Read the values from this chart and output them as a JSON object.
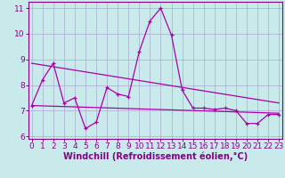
{
  "bg_color": "#c8eaea",
  "grid_color": "#aaaacc",
  "line_color": "#aa00aa",
  "x_hours": [
    0,
    1,
    2,
    3,
    4,
    5,
    6,
    7,
    8,
    9,
    10,
    11,
    12,
    13,
    14,
    15,
    16,
    17,
    18,
    19,
    20,
    21,
    22,
    23
  ],
  "series1": [
    7.2,
    8.2,
    8.85,
    7.3,
    7.5,
    6.3,
    6.55,
    7.9,
    7.65,
    7.55,
    9.3,
    10.5,
    11.0,
    9.95,
    7.8,
    7.1,
    7.1,
    7.05,
    7.1,
    7.0,
    6.5,
    6.5,
    6.85,
    6.85
  ],
  "series2_x": [
    0,
    23
  ],
  "series2_y": [
    8.85,
    7.3
  ],
  "series3_x": [
    0,
    23
  ],
  "series3_y": [
    7.2,
    6.9
  ],
  "ylim": [
    5.9,
    11.25
  ],
  "xlim": [
    -0.3,
    23.3
  ],
  "yticks": [
    6,
    7,
    8,
    9,
    10,
    11
  ],
  "xticks": [
    0,
    1,
    2,
    3,
    4,
    5,
    6,
    7,
    8,
    9,
    10,
    11,
    12,
    13,
    14,
    15,
    16,
    17,
    18,
    19,
    20,
    21,
    22,
    23
  ],
  "xlabel": "Windchill (Refroidissement éolien,°C)",
  "xlabel_fontsize": 7.0,
  "tick_fontsize": 6.5,
  "label_color": "#880088"
}
